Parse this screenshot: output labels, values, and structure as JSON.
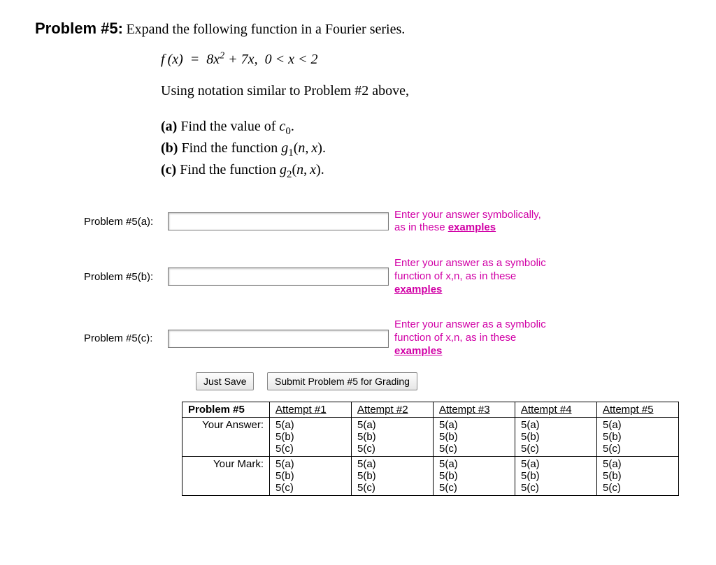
{
  "heading": {
    "label": "Problem #5:",
    "instruction": " Expand the following function in a Fourier series."
  },
  "equation_html": "<i>f</i> (<i>x</i>) &nbsp;=&nbsp; 8<i>x</i><sup>2</sup> + 7<i>x</i>, &nbsp;0 &lt; <i>x</i> &lt; 2",
  "using_line": "Using notation similar to Problem #2 above,",
  "parts": {
    "a": "Find the value of <i>c</i><sub>0</sub>.",
    "b": "Find the function <i>g</i><sub>1</sub>(<i>n</i>, <i>x</i>).",
    "c": "Find the function <i>g</i><sub>2</sub>(<i>n</i>, <i>x</i>)."
  },
  "answers": {
    "a": {
      "label": "Problem #5(a):",
      "hint_pre": "Enter your answer symbolically,",
      "hint_post": "as in these ",
      "hint_link": "examples"
    },
    "b": {
      "label": "Problem #5(b):",
      "hint_pre": "Enter your answer as a symbolic",
      "hint_post": "function of x,n, as in these",
      "hint_link": "examples"
    },
    "c": {
      "label": "Problem #5(c):",
      "hint_pre": "Enter your answer as a symbolic",
      "hint_post": "function of x,n, as in these",
      "hint_link": "examples"
    }
  },
  "buttons": {
    "save": "Just Save",
    "submit": "Submit Problem #5 for Grading"
  },
  "table": {
    "header0": "Problem #5",
    "attempts": [
      "Attempt #1",
      "Attempt #2",
      "Attempt #3",
      "Attempt #4",
      "Attempt #5"
    ],
    "row_your_answer": "Your Answer:",
    "row_your_mark": "Your Mark:",
    "cell_lines": [
      "5(a)",
      "5(b)",
      "5(c)"
    ]
  },
  "colors": {
    "hint": "#d100a6",
    "text": "#000000",
    "background": "#ffffff"
  }
}
